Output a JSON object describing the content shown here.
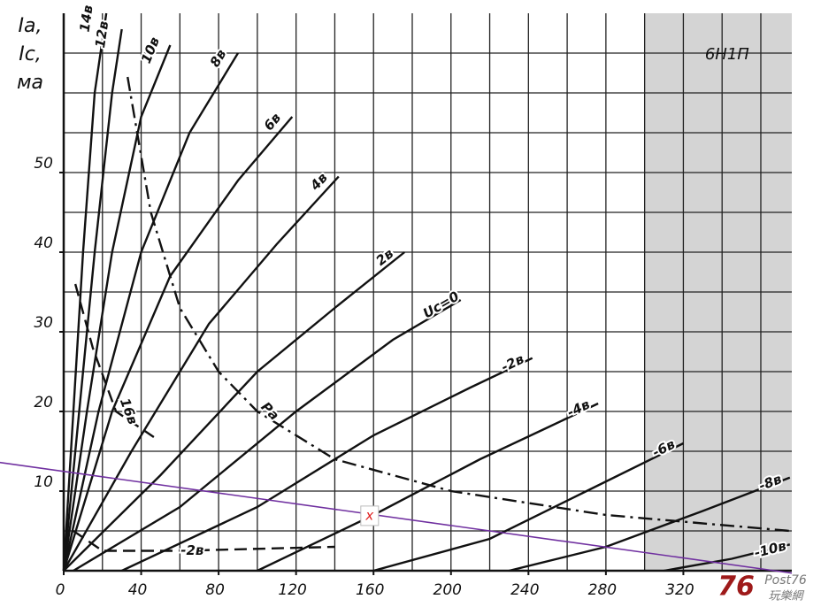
{
  "chart_data": {
    "type": "line",
    "title": "6Н1П",
    "y_label": [
      "Iа,",
      "Iс,",
      "ма"
    ],
    "xlim": [
      0,
      376
    ],
    "ylim": [
      0,
      70
    ],
    "xticks": [
      0,
      40,
      80,
      120,
      160,
      200,
      240,
      280,
      320
    ],
    "yticks": [
      10,
      20,
      30,
      40,
      50
    ],
    "xgrid": [
      20,
      40,
      60,
      80,
      100,
      120,
      140,
      160,
      180,
      200,
      220,
      240,
      260,
      280,
      300,
      320,
      340,
      360
    ],
    "ygrid": [
      5,
      10,
      15,
      20,
      25,
      30,
      35,
      40,
      45,
      50,
      55,
      60,
      65
    ],
    "grid": true,
    "shade_from": 300,
    "shade_color": "#d4d4d4",
    "series": [
      {
        "name": "14в",
        "color": "#111",
        "dash": "solid",
        "x": [
          0,
          5,
          10,
          16,
          22
        ],
        "values": [
          0,
          20,
          40,
          60,
          70
        ]
      },
      {
        "name": "12в",
        "color": "#111",
        "dash": "solid",
        "x": [
          0,
          8,
          16,
          25,
          30
        ],
        "values": [
          0,
          20,
          40,
          60,
          68
        ]
      },
      {
        "name": "10в",
        "color": "#111",
        "dash": "solid",
        "x": [
          0,
          12,
          25,
          40,
          55
        ],
        "values": [
          0,
          20,
          40,
          57,
          66
        ]
      },
      {
        "name": "8в",
        "color": "#111",
        "dash": "solid",
        "x": [
          0,
          18,
          40,
          65,
          90
        ],
        "values": [
          0,
          20,
          40,
          55,
          65
        ]
      },
      {
        "name": "6в",
        "color": "#111",
        "dash": "solid",
        "x": [
          0,
          25,
          55,
          90,
          118
        ],
        "values": [
          0,
          20,
          37,
          49,
          57
        ]
      },
      {
        "name": "4в",
        "color": "#111",
        "dash": "solid",
        "x": [
          0,
          35,
          75,
          110,
          142
        ],
        "values": [
          0,
          15,
          31,
          41,
          49.5
        ]
      },
      {
        "name": "2в",
        "color": "#111",
        "dash": "solid",
        "x": [
          0,
          50,
          100,
          140,
          176
        ],
        "values": [
          0,
          12,
          25,
          33,
          40
        ]
      },
      {
        "name": "Uс=0",
        "color": "#111",
        "dash": "solid",
        "x": [
          5,
          60,
          120,
          170,
          205
        ],
        "values": [
          0,
          8,
          20,
          29,
          34
        ]
      },
      {
        "name": "-2в",
        "color": "#111",
        "dash": "solid",
        "x": [
          30,
          100,
          160,
          210,
          242
        ],
        "values": [
          0,
          8,
          17,
          23,
          26.7
        ]
      },
      {
        "name": "-4в",
        "color": "#111",
        "dash": "solid",
        "x": [
          100,
          160,
          215,
          250,
          276
        ],
        "values": [
          0,
          7,
          14,
          18,
          21
        ]
      },
      {
        "name": "-6в",
        "color": "#111",
        "dash": "solid",
        "x": [
          160,
          220,
          270,
          320
        ],
        "values": [
          0,
          4,
          10,
          16
        ]
      },
      {
        "name": "-8в",
        "color": "#111",
        "dash": "solid",
        "x": [
          230,
          280,
          330,
          375
        ],
        "values": [
          0,
          3,
          7.5,
          11.7
        ]
      },
      {
        "name": "-10в",
        "color": "#111",
        "dash": "solid",
        "x": [
          310,
          345,
          375
        ],
        "values": [
          0,
          1.5,
          3.3
        ]
      },
      {
        "name": "Pа",
        "color": "#111",
        "dash": "dashdot",
        "x": [
          33,
          45,
          60,
          80,
          100,
          140,
          200,
          280,
          375
        ],
        "values": [
          62,
          45,
          33,
          25,
          20,
          14,
          10,
          7,
          5
        ]
      },
      {
        "name": "16в",
        "color": "#111",
        "dash": "dashed",
        "x": [
          6,
          15,
          27,
          47
        ],
        "values": [
          36,
          28,
          20,
          16.7
        ]
      },
      {
        "name": "-2в",
        "color": "#111",
        "dash": "dashed",
        "x": [
          5,
          20,
          60,
          140
        ],
        "values": [
          5,
          2.5,
          2.5,
          3
        ]
      },
      {
        "color": "#7030a0",
        "dash": "thin",
        "x": [
          -33,
          376
        ],
        "values": [
          13.6,
          -0.3
        ]
      }
    ],
    "marker": {
      "text": "x",
      "x": 158,
      "y": 6.9,
      "color": "#e02020"
    },
    "watermark": [
      "76",
      "Post76",
      "玩樂網"
    ]
  }
}
